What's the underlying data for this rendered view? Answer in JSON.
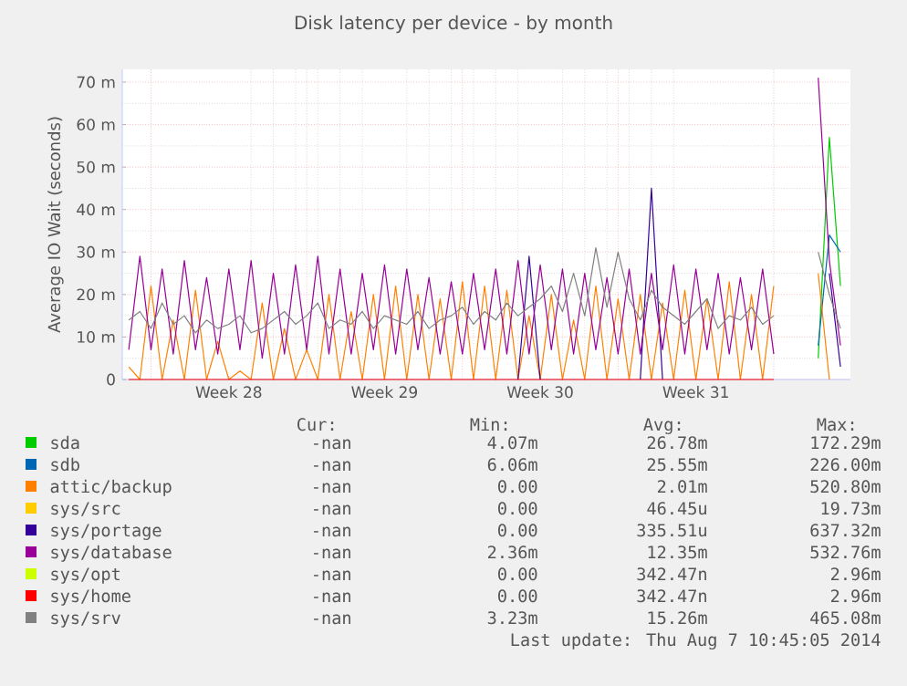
{
  "chart_data": {
    "type": "line",
    "title": "Disk latency per device - by month",
    "ylabel": "Average IO Wait (seconds)",
    "x": [
      "2014-07-06T00:00",
      "2014-07-06T12:00",
      "2014-07-07T00:00",
      "2014-07-07T12:00",
      "2014-07-08T00:00",
      "2014-07-08T12:00",
      "2014-07-09T00:00",
      "2014-07-09T12:00",
      "2014-07-10T00:00",
      "2014-07-10T12:00",
      "2014-07-11T00:00",
      "2014-07-11T12:00",
      "2014-07-12T00:00",
      "2014-07-12T12:00",
      "2014-07-13T00:00",
      "2014-07-13T12:00",
      "2014-07-14T00:00",
      "2014-07-14T12:00",
      "2014-07-15T00:00",
      "2014-07-15T12:00",
      "2014-07-16T00:00",
      "2014-07-16T12:00",
      "2014-07-17T00:00",
      "2014-07-17T12:00",
      "2014-07-18T00:00",
      "2014-07-18T12:00",
      "2014-07-19T00:00",
      "2014-07-19T12:00",
      "2014-07-20T00:00",
      "2014-07-20T12:00",
      "2014-07-21T00:00",
      "2014-07-21T12:00",
      "2014-07-22T00:00",
      "2014-07-22T12:00",
      "2014-07-23T00:00",
      "2014-07-23T12:00",
      "2014-07-24T00:00",
      "2014-07-24T12:00",
      "2014-07-25T00:00",
      "2014-07-25T12:00",
      "2014-07-26T00:00",
      "2014-07-26T12:00",
      "2014-07-27T00:00",
      "2014-07-27T12:00",
      "2014-07-28T00:00",
      "2014-07-28T12:00",
      "2014-07-29T00:00",
      "2014-07-29T12:00",
      "2014-07-30T00:00",
      "2014-07-30T12:00",
      "2014-07-31T00:00",
      "2014-07-31T12:00",
      "2014-08-01T00:00",
      "2014-08-01T12:00",
      "2014-08-02T00:00",
      "2014-08-02T12:00",
      "2014-08-03T00:00",
      "2014-08-03T12:00",
      "2014-08-04T00:00",
      "2014-08-04T12:00",
      "2014-08-05T00:00",
      "2014-08-05T12:00",
      "2014-08-06T00:00",
      "2014-08-06T12:00",
      "2014-08-07T00:00"
    ],
    "xlim": [
      "2014-07-05T17:00",
      "2014-08-07T10:45"
    ],
    "xticks": [
      {
        "value": "2014-07-07",
        "label": null
      },
      {
        "value": "2014-07-10T12:00",
        "label": "Week 28"
      },
      {
        "value": "2014-07-14",
        "label": null
      },
      {
        "value": "2014-07-17T12:00",
        "label": "Week 29"
      },
      {
        "value": "2014-07-21",
        "label": null
      },
      {
        "value": "2014-07-24T12:00",
        "label": "Week 30"
      },
      {
        "value": "2014-07-28",
        "label": null
      },
      {
        "value": "2014-07-31T12:00",
        "label": "Week 31"
      },
      {
        "value": "2014-08-04",
        "label": null
      }
    ],
    "ylim": [
      0,
      73
    ],
    "yticks": [
      {
        "value": 0,
        "label": "0"
      },
      {
        "value": 10,
        "label": "10 m"
      },
      {
        "value": 20,
        "label": "20 m"
      },
      {
        "value": 30,
        "label": "30 m"
      },
      {
        "value": 40,
        "label": "40 m"
      },
      {
        "value": 50,
        "label": "50 m"
      },
      {
        "value": 60,
        "label": "60 m"
      },
      {
        "value": 70,
        "label": "70 m"
      }
    ],
    "grid": true,
    "legend": "bottom",
    "series": [
      {
        "name": "sda",
        "color": "#00cc00",
        "values": [
          null,
          null,
          null,
          null,
          null,
          null,
          null,
          null,
          null,
          null,
          null,
          null,
          null,
          null,
          null,
          null,
          null,
          null,
          null,
          null,
          null,
          null,
          null,
          null,
          null,
          null,
          null,
          null,
          null,
          null,
          null,
          null,
          null,
          null,
          null,
          null,
          null,
          null,
          null,
          null,
          null,
          null,
          null,
          null,
          null,
          null,
          null,
          null,
          null,
          null,
          null,
          null,
          null,
          null,
          null,
          null,
          null,
          null,
          null,
          null,
          null,
          null,
          5,
          57,
          22
        ]
      },
      {
        "name": "sdb",
        "color": "#0066b3",
        "values": [
          null,
          null,
          null,
          null,
          null,
          null,
          null,
          null,
          null,
          null,
          null,
          null,
          null,
          null,
          null,
          null,
          null,
          null,
          null,
          null,
          null,
          null,
          null,
          null,
          null,
          null,
          null,
          null,
          null,
          null,
          null,
          null,
          null,
          null,
          null,
          null,
          null,
          null,
          null,
          null,
          null,
          null,
          null,
          null,
          null,
          null,
          null,
          null,
          null,
          null,
          null,
          null,
          null,
          null,
          null,
          null,
          null,
          null,
          null,
          null,
          null,
          null,
          8,
          34,
          30
        ]
      },
      {
        "name": "attic/backup",
        "color": "#ff8000",
        "values": [
          3,
          0,
          22,
          0,
          14,
          0,
          21,
          0,
          9,
          0,
          2,
          0,
          18,
          0,
          12,
          0,
          7,
          0,
          20,
          0,
          16,
          0,
          20,
          0,
          22,
          0,
          20,
          0,
          19,
          0,
          23,
          0,
          22,
          0,
          21,
          0,
          15,
          0,
          20,
          0,
          14,
          0,
          22,
          0,
          19,
          0,
          20,
          0,
          18,
          0,
          21,
          0,
          19,
          0,
          23,
          0,
          20,
          0,
          22,
          null,
          null,
          null,
          25,
          0,
          null
        ]
      },
      {
        "name": "sys/src",
        "color": "#ffcc00",
        "values": [
          null,
          null,
          null,
          null,
          null,
          null,
          null,
          null,
          null,
          null,
          null,
          null,
          null,
          null,
          null,
          null,
          null,
          null,
          null,
          null,
          null,
          null,
          null,
          null,
          null,
          null,
          null,
          null,
          null,
          null,
          null,
          null,
          null,
          null,
          null,
          null,
          null,
          null,
          null,
          null,
          null,
          null,
          null,
          null,
          null,
          null,
          null,
          null,
          null,
          null,
          null,
          null,
          null,
          null,
          null,
          null,
          null,
          null,
          null,
          null,
          null,
          null,
          null,
          null,
          null
        ]
      },
      {
        "name": "sys/portage",
        "color": "#330099",
        "values": [
          null,
          null,
          null,
          null,
          null,
          null,
          null,
          null,
          null,
          null,
          null,
          null,
          null,
          null,
          null,
          null,
          null,
          null,
          null,
          null,
          null,
          null,
          null,
          null,
          null,
          null,
          null,
          null,
          null,
          null,
          null,
          null,
          null,
          null,
          null,
          0,
          29,
          0,
          null,
          null,
          null,
          null,
          null,
          null,
          null,
          null,
          0,
          45,
          0,
          null,
          null,
          null,
          null,
          null,
          null,
          null,
          null,
          null,
          null,
          null,
          null,
          null,
          null,
          25,
          3
        ]
      },
      {
        "name": "sys/database",
        "color": "#990099",
        "values": [
          7,
          29,
          7,
          26,
          6,
          28,
          7,
          24,
          6,
          26,
          7,
          28,
          5,
          25,
          6,
          27,
          7,
          29,
          6,
          26,
          6,
          25,
          7,
          27,
          6,
          26,
          7,
          24,
          6,
          23,
          6,
          25,
          7,
          26,
          6,
          28,
          6,
          27,
          7,
          26,
          6,
          25,
          7,
          24,
          6,
          26,
          6,
          25,
          7,
          27,
          6,
          26,
          7,
          25,
          6,
          24,
          7,
          26,
          6,
          null,
          null,
          null,
          71,
          28,
          8
        ]
      },
      {
        "name": "sys/opt",
        "color": "#ccff00",
        "values": [
          null,
          null,
          null,
          null,
          null,
          null,
          null,
          null,
          null,
          null,
          null,
          null,
          null,
          null,
          null,
          null,
          null,
          null,
          null,
          null,
          null,
          null,
          null,
          null,
          null,
          null,
          null,
          null,
          null,
          null,
          null,
          null,
          null,
          null,
          null,
          null,
          null,
          null,
          null,
          null,
          null,
          null,
          null,
          null,
          null,
          null,
          null,
          null,
          null,
          null,
          null,
          null,
          null,
          null,
          null,
          null,
          null,
          null,
          null,
          null,
          null,
          null,
          null,
          null,
          null
        ]
      },
      {
        "name": "sys/home",
        "color": "#ff0000",
        "values": [
          0,
          0,
          0,
          0,
          0,
          0,
          0,
          0,
          0,
          0,
          0,
          0,
          0,
          0,
          0,
          0,
          0,
          0,
          0,
          0,
          0,
          0,
          0,
          0,
          0,
          0,
          0,
          0,
          0,
          0,
          0,
          0,
          0,
          0,
          0,
          0,
          0,
          0,
          0,
          0,
          0,
          0,
          0,
          0,
          0,
          0,
          0,
          0,
          0,
          0,
          0,
          0,
          0,
          0,
          0,
          0,
          0,
          0,
          0,
          null,
          null,
          null,
          null,
          null,
          null
        ]
      },
      {
        "name": "sys/srv",
        "color": "#808080",
        "values": [
          14,
          16,
          12,
          18,
          13,
          15,
          11,
          14,
          12,
          13,
          15,
          11,
          12,
          14,
          16,
          13,
          15,
          18,
          12,
          14,
          13,
          16,
          12,
          15,
          14,
          13,
          16,
          12,
          14,
          15,
          17,
          13,
          16,
          14,
          18,
          15,
          17,
          19,
          22,
          16,
          25,
          15,
          31,
          17,
          30,
          19,
          14,
          21,
          17,
          15,
          13,
          16,
          19,
          12,
          15,
          14,
          17,
          13,
          15,
          null,
          null,
          null,
          30,
          20,
          12
        ]
      }
    ],
    "annotations": [
      "Cur:",
      "Min:",
      "Avg:",
      "Max:",
      "-nan",
      "4.07m",
      "26.78m",
      "172.29m",
      "-nan",
      "6.06m",
      "25.55m",
      "226.00m",
      "-nan",
      "0.00",
      "2.01m",
      "520.80m",
      "-nan",
      "0.00",
      "46.45u",
      "19.73m",
      "-nan",
      "0.00",
      "335.51u",
      "637.32m",
      "-nan",
      "2.36m",
      "12.35m",
      "532.76m",
      "-nan",
      "0.00",
      "342.47n",
      "2.96m",
      "-nan",
      "0.00",
      "342.47n",
      "2.96m",
      "-nan",
      "3.23m",
      "15.26m",
      "465.08m",
      "Last update:  Thu Aug  7 10:45:05 2014"
    ]
  }
}
